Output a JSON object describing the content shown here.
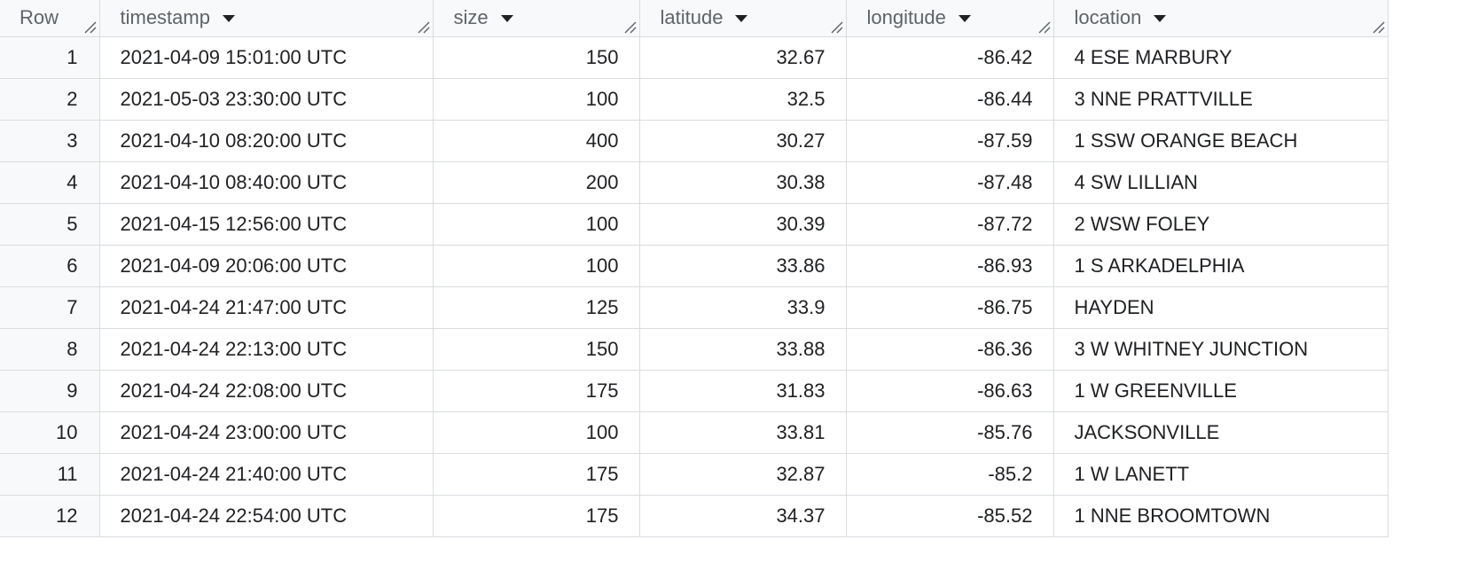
{
  "columns": [
    {
      "label": "Row",
      "sortable": false
    },
    {
      "label": "timestamp",
      "sortable": true
    },
    {
      "label": "size",
      "sortable": true
    },
    {
      "label": "latitude",
      "sortable": true
    },
    {
      "label": "longitude",
      "sortable": true
    },
    {
      "label": "location",
      "sortable": true
    }
  ],
  "rows": [
    {
      "row": "1",
      "timestamp": "2021-04-09 15:01:00 UTC",
      "size": "150",
      "latitude": "32.67",
      "longitude": "-86.42",
      "location": "4 ESE MARBURY"
    },
    {
      "row": "2",
      "timestamp": "2021-05-03 23:30:00 UTC",
      "size": "100",
      "latitude": "32.5",
      "longitude": "-86.44",
      "location": "3 NNE PRATTVILLE"
    },
    {
      "row": "3",
      "timestamp": "2021-04-10 08:20:00 UTC",
      "size": "400",
      "latitude": "30.27",
      "longitude": "-87.59",
      "location": "1 SSW ORANGE BEACH"
    },
    {
      "row": "4",
      "timestamp": "2021-04-10 08:40:00 UTC",
      "size": "200",
      "latitude": "30.38",
      "longitude": "-87.48",
      "location": "4 SW LILLIAN"
    },
    {
      "row": "5",
      "timestamp": "2021-04-15 12:56:00 UTC",
      "size": "100",
      "latitude": "30.39",
      "longitude": "-87.72",
      "location": "2 WSW FOLEY"
    },
    {
      "row": "6",
      "timestamp": "2021-04-09 20:06:00 UTC",
      "size": "100",
      "latitude": "33.86",
      "longitude": "-86.93",
      "location": "1 S ARKADELPHIA"
    },
    {
      "row": "7",
      "timestamp": "2021-04-24 21:47:00 UTC",
      "size": "125",
      "latitude": "33.9",
      "longitude": "-86.75",
      "location": "HAYDEN"
    },
    {
      "row": "8",
      "timestamp": "2021-04-24 22:13:00 UTC",
      "size": "150",
      "latitude": "33.88",
      "longitude": "-86.36",
      "location": "3 W WHITNEY JUNCTION"
    },
    {
      "row": "9",
      "timestamp": "2021-04-24 22:08:00 UTC",
      "size": "175",
      "latitude": "31.83",
      "longitude": "-86.63",
      "location": "1 W GREENVILLE"
    },
    {
      "row": "10",
      "timestamp": "2021-04-24 23:00:00 UTC",
      "size": "100",
      "latitude": "33.81",
      "longitude": "-85.76",
      "location": "JACKSONVILLE"
    },
    {
      "row": "11",
      "timestamp": "2021-04-24 21:40:00 UTC",
      "size": "175",
      "latitude": "32.87",
      "longitude": "-85.2",
      "location": "1 W LANETT"
    },
    {
      "row": "12",
      "timestamp": "2021-04-24 22:54:00 UTC",
      "size": "175",
      "latitude": "34.37",
      "longitude": "-85.52",
      "location": "1 NNE BROOMTOWN"
    }
  ],
  "icons": {
    "sort": "sort-dropdown-icon",
    "resize": "column-resize-icon"
  },
  "colors": {
    "header_bg": "#f8f9fa",
    "grid_line": "#dadce0",
    "header_text": "#5f6368",
    "cell_text": "#202124"
  }
}
